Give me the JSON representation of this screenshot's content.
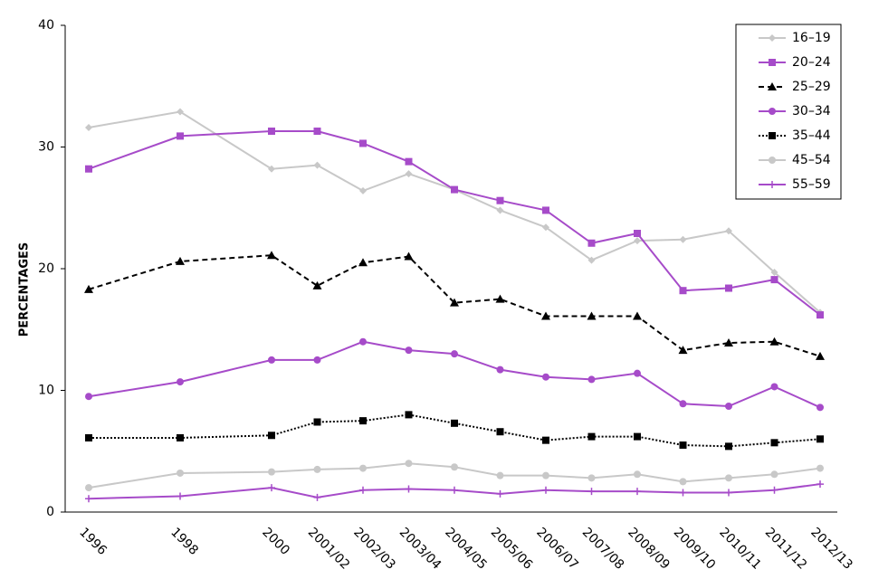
{
  "chart_data": {
    "type": "line",
    "y_label": "PERCENTAGES",
    "categories": [
      "1996",
      "1998",
      "2000",
      "2001/02",
      "2002/03",
      "2003/04",
      "2004/05",
      "2005/06",
      "2006/07",
      "2007/08",
      "2008/09",
      "2009/10",
      "2010/11",
      "2011/12",
      "2012/13"
    ],
    "ylim": [
      0,
      40
    ],
    "yticks": [
      0,
      10,
      20,
      30,
      40
    ],
    "grid": false,
    "legend": "top-right",
    "series": [
      {
        "name": "16–19",
        "color": "#c8c8c8",
        "marker": "diamond",
        "dash": "solid",
        "values": [
          31.6,
          32.9,
          28.2,
          28.5,
          26.4,
          27.8,
          26.5,
          24.8,
          23.4,
          20.7,
          22.3,
          22.4,
          23.1,
          19.7,
          16.4
        ]
      },
      {
        "name": "20–24",
        "color": "#a64bc9",
        "marker": "square",
        "dash": "solid",
        "values": [
          28.2,
          30.9,
          31.3,
          31.3,
          30.3,
          28.8,
          26.5,
          25.6,
          24.8,
          22.1,
          22.9,
          18.2,
          18.4,
          19.1,
          16.2
        ]
      },
      {
        "name": "25–29",
        "color": "#000000",
        "marker": "triangle",
        "dash": "dashed",
        "values": [
          18.3,
          20.6,
          21.1,
          18.6,
          20.5,
          21.0,
          17.2,
          17.5,
          16.1,
          16.1,
          16.1,
          13.3,
          13.9,
          14.0,
          12.8
        ]
      },
      {
        "name": "30–34",
        "color": "#a64bc9",
        "marker": "circle",
        "dash": "solid",
        "values": [
          9.5,
          10.7,
          12.5,
          12.5,
          14.0,
          13.3,
          13.0,
          11.7,
          11.1,
          10.9,
          11.4,
          8.9,
          8.7,
          10.3,
          8.6
        ]
      },
      {
        "name": "35–44",
        "color": "#000000",
        "marker": "square",
        "dash": "dotted",
        "values": [
          6.1,
          6.1,
          6.3,
          7.4,
          7.5,
          8.0,
          7.3,
          6.6,
          5.9,
          6.2,
          6.2,
          5.5,
          5.4,
          5.7,
          6.0
        ]
      },
      {
        "name": "45–54",
        "color": "#c8c8c8",
        "marker": "circle",
        "dash": "solid",
        "values": [
          2.0,
          3.2,
          3.3,
          3.5,
          3.6,
          4.0,
          3.7,
          3.0,
          3.0,
          2.8,
          3.1,
          2.5,
          2.8,
          3.1,
          3.6
        ]
      },
      {
        "name": "55–59",
        "color": "#a64bc9",
        "marker": "plus",
        "dash": "solid",
        "values": [
          1.1,
          1.3,
          2.0,
          1.2,
          1.8,
          1.9,
          1.8,
          1.5,
          1.8,
          1.7,
          1.7,
          1.6,
          1.6,
          1.8,
          2.3
        ]
      }
    ]
  }
}
